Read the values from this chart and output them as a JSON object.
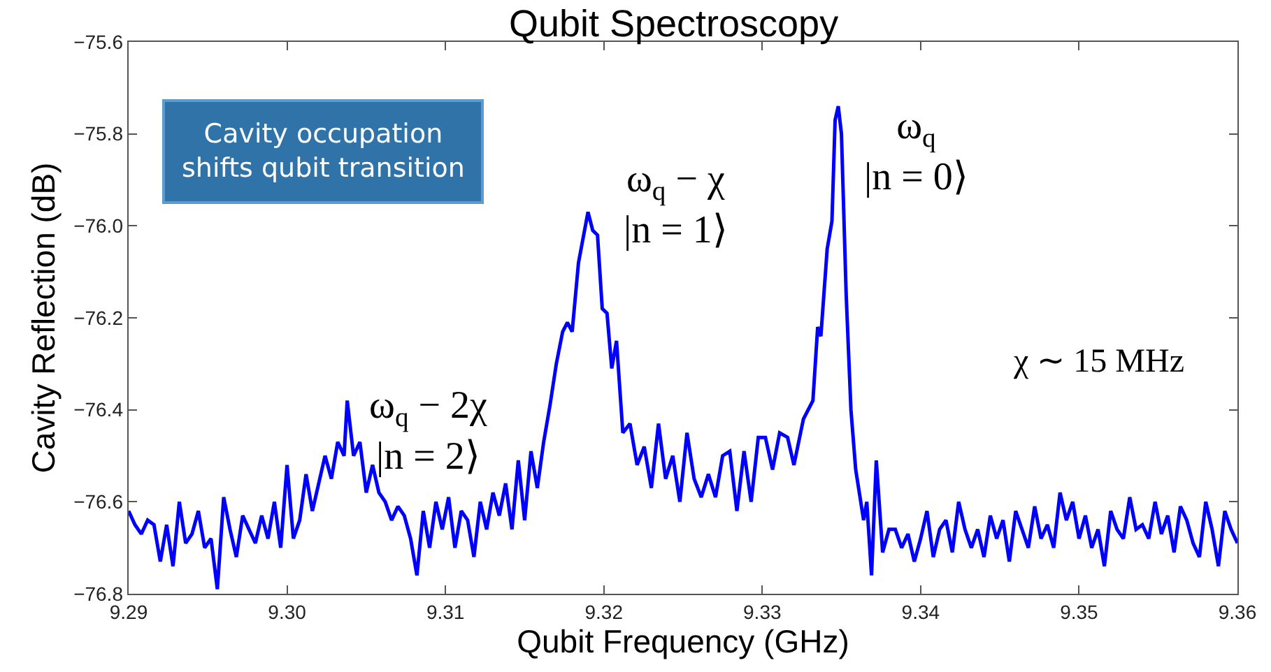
{
  "chart_data": {
    "type": "line",
    "title": "Qubit Spectroscopy",
    "xlabel": "Qubit Frequency (GHz)",
    "ylabel": "Cavity Reflection (dB)",
    "x": [
      9.29,
      9.2904,
      9.2908,
      9.2912,
      9.2916,
      9.292,
      9.2924,
      9.2928,
      9.2932,
      9.2936,
      9.294,
      9.2944,
      9.2948,
      9.2952,
      9.2956,
      9.296,
      9.2964,
      9.2968,
      9.2972,
      9.2976,
      9.298,
      9.2984,
      9.2988,
      9.2992,
      9.2996,
      9.3,
      9.3004,
      9.3008,
      9.3012,
      9.3016,
      9.302,
      9.3024,
      9.3028,
      9.3032,
      9.3036,
      9.3038,
      9.3042,
      9.3046,
      9.305,
      9.3054,
      9.3058,
      9.3062,
      9.3066,
      9.307,
      9.3074,
      9.3078,
      9.3082,
      9.3086,
      9.309,
      9.3094,
      9.3098,
      9.3102,
      9.3106,
      9.311,
      9.3114,
      9.3118,
      9.3122,
      9.3126,
      9.313,
      9.3134,
      9.3138,
      9.3142,
      9.3146,
      9.315,
      9.3154,
      9.3158,
      9.3162,
      9.3166,
      9.317,
      9.3174,
      9.3177,
      9.318,
      9.3184,
      9.319,
      9.3193,
      9.3196,
      9.3199,
      9.3202,
      9.3205,
      9.3208,
      9.3212,
      9.32165,
      9.3221,
      9.32255,
      9.323,
      9.32345,
      9.3239,
      9.32435,
      9.3248,
      9.32525,
      9.3257,
      9.32615,
      9.3266,
      9.32705,
      9.3275,
      9.32795,
      9.3284,
      9.32885,
      9.3293,
      9.32975,
      9.3302,
      9.33065,
      9.3311,
      9.3316,
      9.332,
      9.3326,
      9.3332,
      9.3335,
      9.3337,
      9.3341,
      9.3344,
      9.3346,
      9.3348,
      9.335,
      9.3353,
      9.3356,
      9.3359,
      9.3364,
      9.3366,
      9.3369,
      9.3372,
      9.3376,
      9.338,
      9.3384,
      9.3388,
      9.3392,
      9.3396,
      9.34,
      9.3404,
      9.3408,
      9.3412,
      9.3416,
      9.342,
      9.3424,
      9.3428,
      9.3432,
      9.3436,
      9.344,
      9.3444,
      9.3448,
      9.3452,
      9.3456,
      9.346,
      9.3464,
      9.3468,
      9.3472,
      9.3476,
      9.348,
      9.3484,
      9.3488,
      9.3492,
      9.3496,
      9.35,
      9.3504,
      9.3508,
      9.3512,
      9.3516,
      9.352,
      9.3524,
      9.3528,
      9.3532,
      9.3536,
      9.354,
      9.3544,
      9.3548,
      9.3552,
      9.3556,
      9.356,
      9.3564,
      9.3568,
      9.3572,
      9.3576,
      9.358,
      9.3584,
      9.3588,
      9.3592,
      9.3596,
      9.36
    ],
    "series": [
      {
        "color": "#0000ff",
        "values": [
          -76.62,
          -76.65,
          -76.67,
          -76.64,
          -76.65,
          -76.73,
          -76.65,
          -76.74,
          -76.6,
          -76.69,
          -76.67,
          -76.62,
          -76.7,
          -76.68,
          -76.79,
          -76.59,
          -76.66,
          -76.72,
          -76.63,
          -76.66,
          -76.69,
          -76.63,
          -76.68,
          -76.6,
          -76.7,
          -76.52,
          -76.68,
          -76.64,
          -76.54,
          -76.62,
          -76.56,
          -76.5,
          -76.55,
          -76.47,
          -76.5,
          -76.38,
          -76.5,
          -76.47,
          -76.58,
          -76.52,
          -76.58,
          -76.6,
          -76.64,
          -76.61,
          -76.63,
          -76.68,
          -76.76,
          -76.62,
          -76.7,
          -76.6,
          -76.66,
          -76.59,
          -76.7,
          -76.62,
          -76.64,
          -76.72,
          -76.6,
          -76.66,
          -76.58,
          -76.63,
          -76.56,
          -76.66,
          -76.51,
          -76.64,
          -76.49,
          -76.57,
          -76.47,
          -76.39,
          -76.3,
          -76.23,
          -76.21,
          -76.23,
          -76.08,
          -75.97,
          -76.01,
          -76.02,
          -76.18,
          -76.19,
          -76.31,
          -76.25,
          -76.45,
          -76.43,
          -76.52,
          -76.48,
          -76.57,
          -76.43,
          -76.55,
          -76.5,
          -76.6,
          -76.45,
          -76.55,
          -76.59,
          -76.54,
          -76.59,
          -76.5,
          -76.49,
          -76.62,
          -76.49,
          -76.6,
          -76.46,
          -76.46,
          -76.53,
          -76.45,
          -76.46,
          -76.52,
          -76.42,
          -76.38,
          -76.22,
          -76.24,
          -76.05,
          -75.99,
          -75.77,
          -75.74,
          -75.8,
          -76.15,
          -76.4,
          -76.53,
          -76.64,
          -76.6,
          -76.76,
          -76.51,
          -76.71,
          -76.66,
          -76.66,
          -76.7,
          -76.67,
          -76.73,
          -76.68,
          -76.62,
          -76.72,
          -76.66,
          -76.64,
          -76.71,
          -76.6,
          -76.66,
          -76.7,
          -76.66,
          -76.72,
          -76.63,
          -76.68,
          -76.64,
          -76.73,
          -76.62,
          -76.66,
          -76.7,
          -76.61,
          -76.68,
          -76.65,
          -76.7,
          -76.58,
          -76.64,
          -76.6,
          -76.68,
          -76.63,
          -76.7,
          -76.66,
          -76.74,
          -76.62,
          -76.66,
          -76.68,
          -76.59,
          -76.66,
          -76.65,
          -76.68,
          -76.6,
          -76.67,
          -76.63,
          -76.71,
          -76.61,
          -76.64,
          -76.69,
          -76.72,
          -76.6,
          -76.66,
          -76.74,
          -76.62,
          -76.66,
          -76.69
        ]
      }
    ],
    "xlim": [
      9.29,
      9.36
    ],
    "ylim": [
      -76.8,
      -75.6
    ],
    "xticks": [
      {
        "value": 9.29,
        "label": "9.29"
      },
      {
        "value": 9.3,
        "label": "9.30"
      },
      {
        "value": 9.31,
        "label": "9.31"
      },
      {
        "value": 9.32,
        "label": "9.32"
      },
      {
        "value": 9.33,
        "label": "9.33"
      },
      {
        "value": 9.34,
        "label": "9.34"
      },
      {
        "value": 9.35,
        "label": "9.35"
      },
      {
        "value": 9.36,
        "label": "9.36"
      }
    ],
    "yticks": [
      {
        "value": -76.8,
        "label": "−76.8"
      },
      {
        "value": -76.6,
        "label": "−76.6"
      },
      {
        "value": -76.4,
        "label": "−76.4"
      },
      {
        "value": -76.2,
        "label": "−76.2"
      },
      {
        "value": -76.0,
        "label": "−76.0"
      },
      {
        "value": -75.8,
        "label": "−75.8"
      },
      {
        "value": -75.6,
        "label": "−75.6"
      }
    ],
    "annotations": [
      {
        "text": "ω$_{q}$ − 2χ\n|n = 2⟩",
        "x": 9.3038,
        "y": -76.38
      },
      {
        "text": "ω$_{q}$ − χ\n|n = 1⟩",
        "x": 9.319,
        "y": -75.97
      },
      "ω$_{q}$\n|n = 0⟩",
      "Cavity occupation\nshifts qubit transition",
      "χ ∼ 15 MHz"
    ],
    "grid": false,
    "marker": "none",
    "line_style": "solid"
  }
}
